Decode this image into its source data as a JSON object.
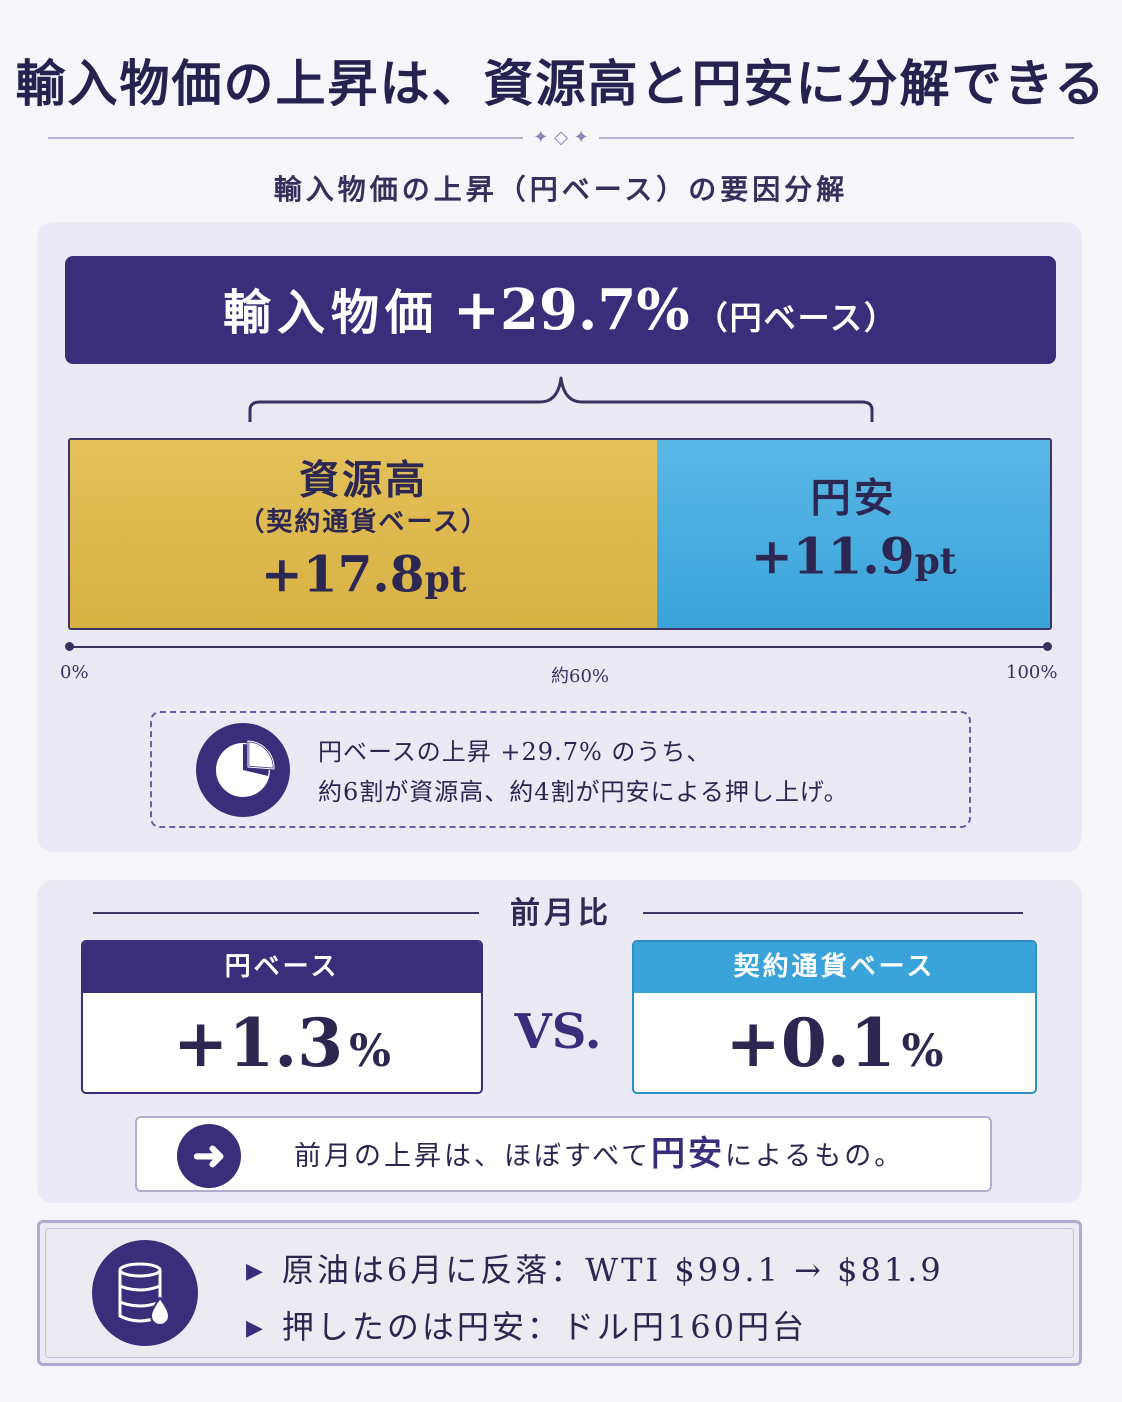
{
  "title": "輸入物価の上昇は、資源高と円安に分解できる",
  "ornament": "✦ ◇ ✦",
  "subtitle": "輸入物価の上昇（円ベース）の要因分解",
  "header": {
    "label": "輸入物価",
    "value": "+29.7%",
    "suffix": "（円ベース）"
  },
  "decomposition": {
    "segments": [
      {
        "title": "資源高",
        "subtitle": "（契約通貨ベース）",
        "value": "+17.8",
        "unit": "pt",
        "value_num": 17.8,
        "color": "#d7b144"
      },
      {
        "title": "円安",
        "value": "+11.9",
        "unit": "pt",
        "value_num": 11.9,
        "color": "#3aa3d9"
      }
    ],
    "axis": {
      "start": "0%",
      "mid": "約60%",
      "end": "100%"
    }
  },
  "note": {
    "icon": "pie-chart-icon",
    "line1": "円ベースの上昇 +29.7% のうち、",
    "line2": "約6割が資源高、約4割が円安による押し上げ。"
  },
  "mom": {
    "title": "前月比",
    "vs": "VS.",
    "yen_card": {
      "label": "円ベース",
      "value": "+1.3",
      "unit": "%"
    },
    "contract_card": {
      "label": "契約通貨ベース",
      "value": "+0.1",
      "unit": "%"
    },
    "conclusion": {
      "icon": "arrow-right-icon",
      "pre": "前月の上昇は、ほぼすべて",
      "emphasis": "円安",
      "post": "によるもの。"
    }
  },
  "facts": {
    "icon": "oil-barrel-icon",
    "items": [
      "原油は6月に反落：WTI $99.1 → $81.9",
      "押したのは円安：ドル円160円台"
    ]
  },
  "colors": {
    "navy": "#3a2e7a",
    "gold": "#d7b144",
    "sky": "#3aa3d9",
    "panel": "#ebe9f4"
  }
}
